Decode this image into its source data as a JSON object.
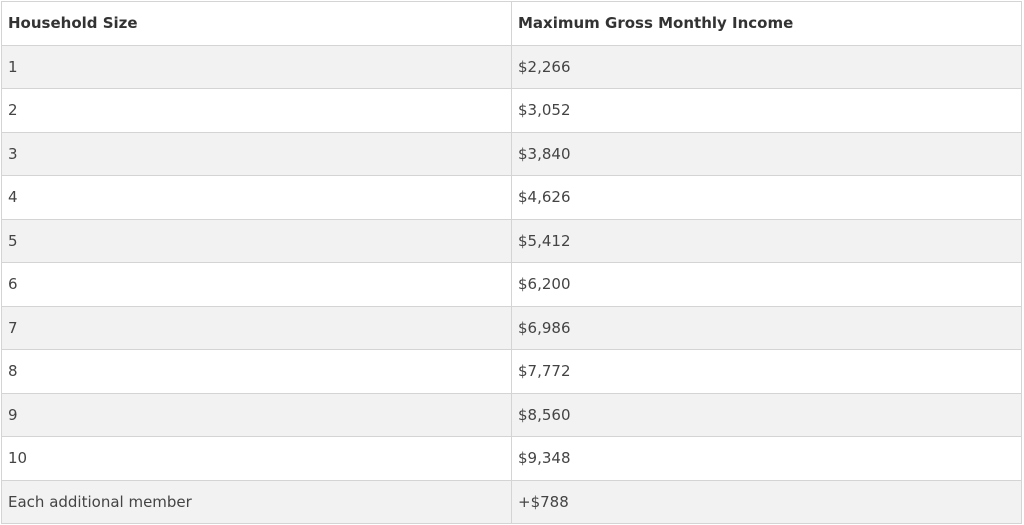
{
  "table": {
    "headers": [
      "Household Size",
      "Maximum Gross Monthly Income"
    ],
    "rows": [
      [
        "1",
        "$2,266"
      ],
      [
        "2",
        "$3,052"
      ],
      [
        "3",
        "$3,840"
      ],
      [
        "4",
        "$4,626"
      ],
      [
        "5",
        "$5,412"
      ],
      [
        "6",
        "$6,200"
      ],
      [
        "7",
        "$6,986"
      ],
      [
        "8",
        "$7,772"
      ],
      [
        "9",
        "$8,560"
      ],
      [
        "10",
        "$9,348"
      ],
      [
        "Each additional member",
        "+$788"
      ]
    ]
  }
}
